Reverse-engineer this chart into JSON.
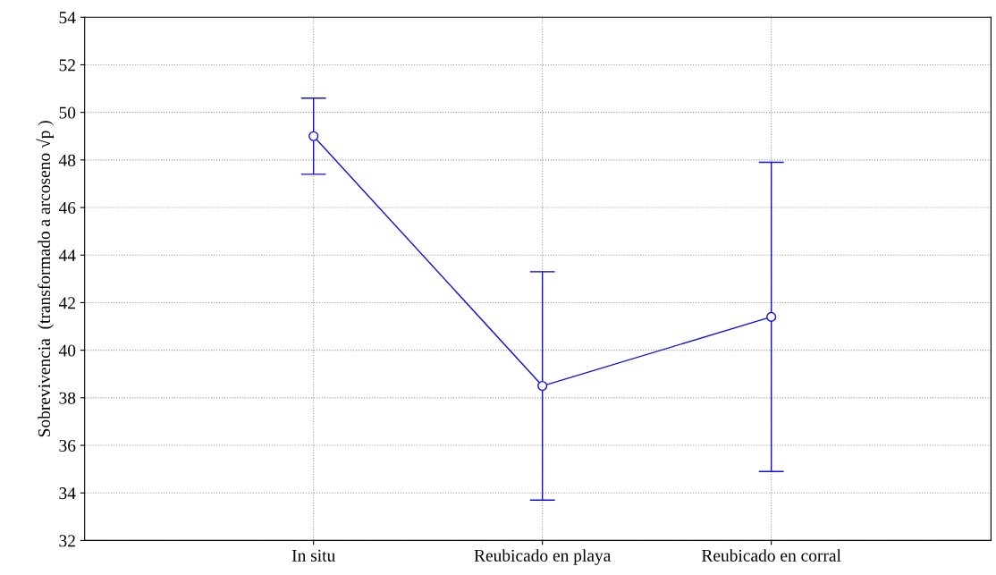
{
  "chart_data": {
    "type": "line",
    "ylabel": "Sobrevivencia  (transformado a arcoseno √p )",
    "categories": [
      "In situ",
      "Reubicado en playa",
      "Reubicado en corral"
    ],
    "series": [
      {
        "color": "#1010e0",
        "values": [
          49.0,
          38.5,
          41.4
        ],
        "errors": [
          1.6,
          4.8,
          6.5
        ]
      }
    ],
    "ylim": [
      32,
      54
    ],
    "yticks": [
      32,
      34,
      36,
      38,
      40,
      42,
      44,
      46,
      48,
      50,
      52,
      54
    ],
    "grid": true,
    "marker": "circle",
    "line_style": "solid"
  }
}
